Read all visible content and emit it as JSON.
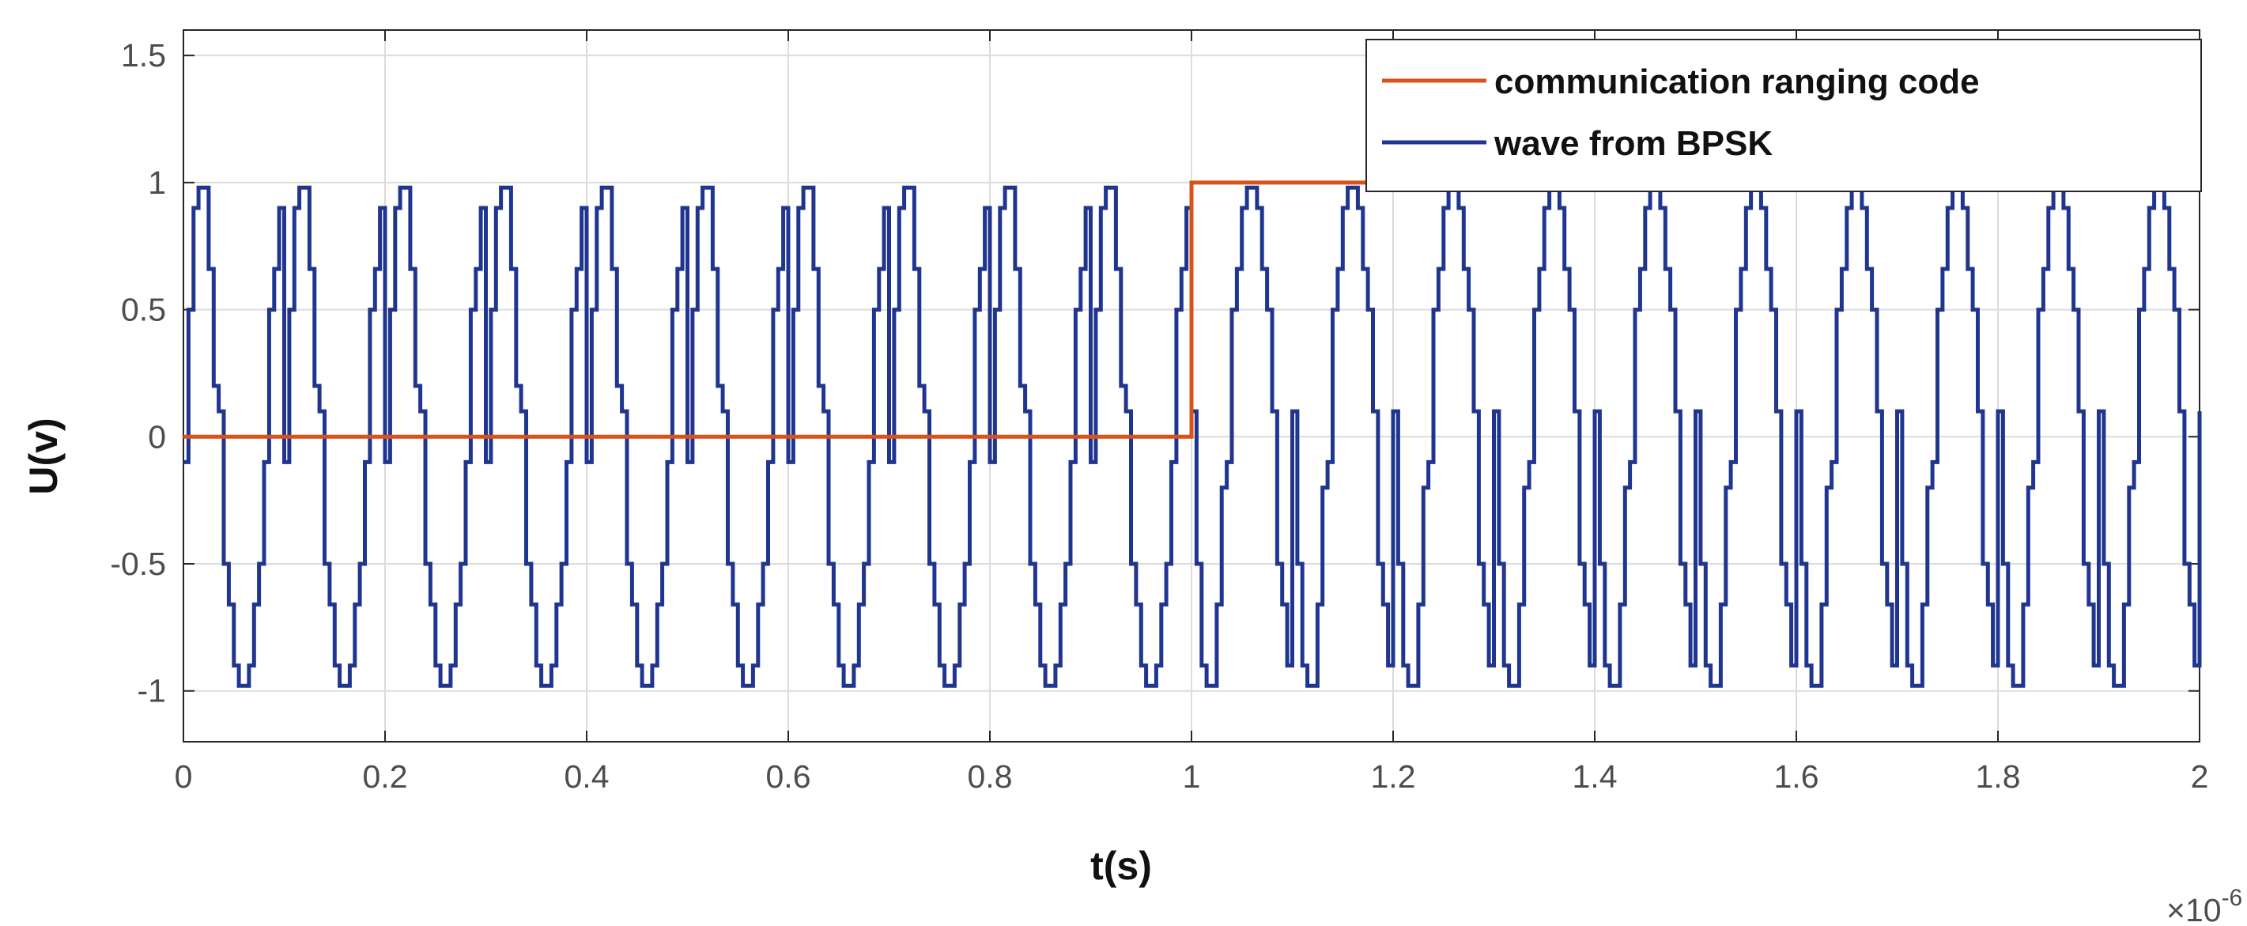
{
  "chart_data": {
    "type": "line",
    "xlabel": "t(s)",
    "ylabel": "U(v)",
    "x_scale_label": {
      "base": "×10",
      "exponent": "-6"
    },
    "xlim": [
      0,
      2
    ],
    "ylim": [
      -1.2,
      1.6
    ],
    "x_ticks": [
      "0",
      "0.2",
      "0.4",
      "0.6",
      "0.8",
      "1",
      "1.2",
      "1.4",
      "1.6",
      "1.8",
      "2"
    ],
    "x_tick_values": [
      0,
      0.2,
      0.4,
      0.6,
      0.8,
      1,
      1.2,
      1.4,
      1.6,
      1.8,
      2
    ],
    "y_ticks": [
      "-1",
      "-0.5",
      "0",
      "0.5",
      "1",
      "1.5"
    ],
    "y_tick_values": [
      -1,
      -0.5,
      0,
      0.5,
      1,
      1.5
    ],
    "grid": true,
    "legend_position": "top-right",
    "series": [
      {
        "name": "communication ranging code",
        "color": "#d95319",
        "style": "step",
        "x": [
          0,
          1,
          1,
          2
        ],
        "y": [
          0,
          0,
          1,
          1
        ]
      },
      {
        "name": "wave from BPSK",
        "color": "#1f3590",
        "style": "step",
        "period": 0.1,
        "samples_per_period": 20,
        "phase_flip_at": 1,
        "levels_first_period": [
          -0.1,
          0.5,
          0.9,
          0.98,
          0.98,
          0.66,
          0.2,
          0.1,
          -0.5,
          -0.66,
          -0.9,
          -0.98,
          -0.98,
          -0.9,
          -0.66,
          -0.5,
          -0.1,
          0.5,
          0.66,
          0.9
        ]
      }
    ]
  }
}
